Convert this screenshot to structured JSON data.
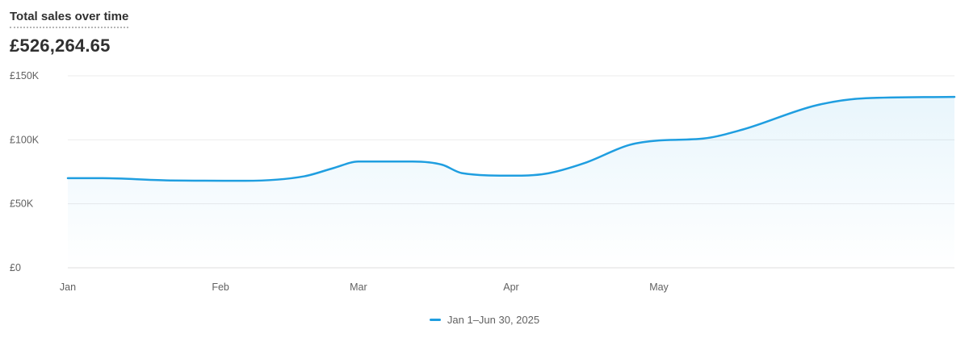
{
  "card": {
    "title": "Total sales over time",
    "total": "£526,264.65"
  },
  "colors": {
    "line": "#1f9ee0",
    "grid": "#ebebeb",
    "baseline": "#dcdcdc",
    "text": "#303030",
    "muted": "#616161"
  },
  "chart_data": {
    "type": "area",
    "title": "Total sales over time",
    "ylim": [
      0,
      150000
    ],
    "yticks": [
      {
        "value": 0,
        "label": "£0"
      },
      {
        "value": 50000,
        "label": "£50K"
      },
      {
        "value": 100000,
        "label": "£100K"
      },
      {
        "value": 150000,
        "label": "£150K"
      }
    ],
    "xlim": [
      "2025-01-01",
      "2025-06-30"
    ],
    "xticks": [
      {
        "date": "2025-01-01",
        "label": "Jan"
      },
      {
        "date": "2025-02-01",
        "label": "Feb"
      },
      {
        "date": "2025-03-01",
        "label": "Mar"
      },
      {
        "date": "2025-04-01",
        "label": "Apr"
      },
      {
        "date": "2025-05-01",
        "label": "May"
      }
    ],
    "grid": true,
    "legend_position": "bottom-center",
    "series": [
      {
        "name": "Jan 1–Jun 30, 2025",
        "points": [
          {
            "x": "2025-01-01",
            "y": 70000
          },
          {
            "x": "2025-01-08",
            "y": 70000
          },
          {
            "x": "2025-01-21",
            "y": 68300
          },
          {
            "x": "2025-02-06",
            "y": 68000
          },
          {
            "x": "2025-02-18",
            "y": 71500
          },
          {
            "x": "2025-02-24",
            "y": 78000
          },
          {
            "x": "2025-03-01",
            "y": 83000
          },
          {
            "x": "2025-03-12",
            "y": 83000
          },
          {
            "x": "2025-03-18",
            "y": 80500
          },
          {
            "x": "2025-03-22",
            "y": 74000
          },
          {
            "x": "2025-04-01",
            "y": 72000
          },
          {
            "x": "2025-04-08",
            "y": 73500
          },
          {
            "x": "2025-04-16",
            "y": 82000
          },
          {
            "x": "2025-04-25",
            "y": 96000
          },
          {
            "x": "2025-05-01",
            "y": 99500
          },
          {
            "x": "2025-05-10",
            "y": 101000
          },
          {
            "x": "2025-05-18",
            "y": 108000
          },
          {
            "x": "2025-06-02",
            "y": 127000
          },
          {
            "x": "2025-06-12",
            "y": 132500
          },
          {
            "x": "2025-06-30",
            "y": 133500
          }
        ]
      }
    ]
  }
}
